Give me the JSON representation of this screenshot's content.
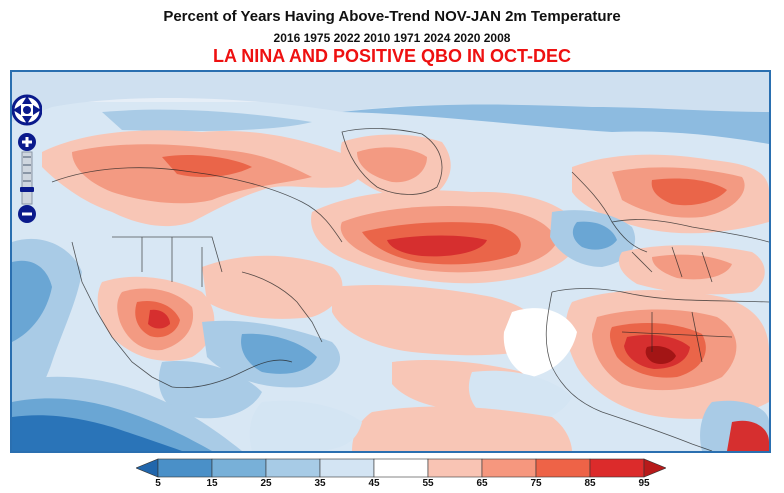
{
  "title": "Percent of Years Having Above-Trend NOV-JAN 2m Temperature",
  "years": "2016 1975 2022 2010 1971 2024 2020 2008",
  "subtitle": "LA NINA AND POSITIVE QBO IN OCT-DEC",
  "colorbar": {
    "labels": [
      "5",
      "15",
      "25",
      "35",
      "45",
      "55",
      "65",
      "75",
      "85",
      "95"
    ],
    "colors": [
      "#2166ac",
      "#4a90c8",
      "#78b0d8",
      "#a7cbe6",
      "#d3e4f3",
      "#ffffff",
      "#f9c4b4",
      "#f6977e",
      "#ee6347",
      "#dc2b2b",
      "#b71a1a"
    ]
  },
  "map": {
    "palette": {
      "deep_blue": "#2a74b8",
      "mid_blue": "#6aa6d4",
      "light_blue": "#a9cbe6",
      "pale_blue": "#d4e5f3",
      "white": "#ffffff",
      "pale_red": "#f8c6b6",
      "light_red": "#f39a82",
      "mid_red": "#ea6549",
      "deep_red": "#d62f2f",
      "darkest_red": "#a31515"
    }
  },
  "navigation": {
    "pan_icon": "pan-arrows-icon",
    "zoom_in_icon": "zoom-in-icon",
    "zoom_out_icon": "zoom-out-icon"
  }
}
